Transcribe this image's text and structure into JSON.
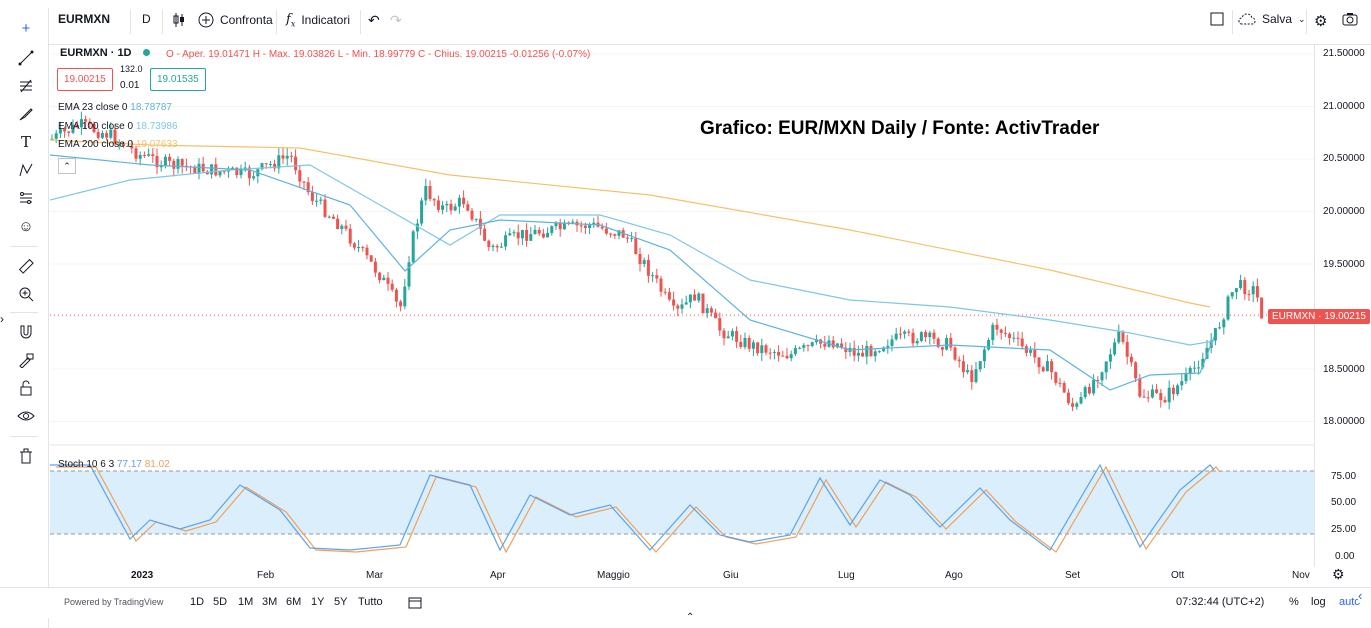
{
  "toolbar": {
    "symbol": "EURMXN",
    "interval": "D",
    "compare_label": "Confronta",
    "indicators_label": "Indicatori",
    "save_label": "Salva"
  },
  "legend": {
    "title": "EURMXN · 1D",
    "ohlc": "O - Aper. 19.01471  H - Max. 19.03826  L - Min. 18.99779  C - Chius. 19.00215  -0.01256 (-0.07%)",
    "bid": "19.00215",
    "spread_top": "132.0",
    "spread_bottom": "0.01",
    "ask": "19.01535",
    "ema1": "EMA 23 close 0",
    "ema1_val": "18.78787",
    "ema2": "EMA 100 close 0",
    "ema2_val": "18.73986",
    "ema3": "EMA 200 close 0",
    "ema3_val": "19.07633",
    "stoch": "Stoch 10 6 3",
    "stoch_k": "77.17",
    "stoch_d": "81.02"
  },
  "overlay_title": "Grafico: EUR/MXN Daily / Fonte: ActivTrader",
  "price_label": "EURMXN",
  "price_value": "19.00215",
  "y_ticks": [
    "21.50000",
    "21.00000",
    "20.50000",
    "20.00000",
    "19.50000",
    "19.00000",
    "18.50000",
    "18.00000"
  ],
  "stoch_ticks": [
    "75.00",
    "50.00",
    "25.00",
    "0.00"
  ],
  "x_ticks": [
    "2023",
    "Feb",
    "Mar",
    "Apr",
    "Maggio",
    "Giu",
    "Lug",
    "Ago",
    "Set",
    "Ott",
    "Nov"
  ],
  "bottom": {
    "powered": "Powered by TradingView",
    "ranges": [
      "1D",
      "5D",
      "1M",
      "3M",
      "6M",
      "1Y",
      "5Y",
      "Tutto"
    ],
    "time": "07:32:44 (UTC+2)",
    "percent": "%",
    "log": "log",
    "auto": "auto"
  },
  "colors": {
    "up": "#26a69a",
    "down": "#ef5350",
    "ema200": "#f5c26b",
    "ema100": "#7ec8e3",
    "ema23": "#5fb3d9",
    "stochK": "#5ea2e8",
    "stochD": "#f0a05a",
    "stochBand": "#dbeefc"
  },
  "icons": [
    "crosshair-icon",
    "trendline-icon",
    "fib-icon",
    "brush-icon",
    "text-icon",
    "pattern-icon",
    "forecast-icon",
    "emoji-icon",
    "ruler-icon",
    "zoom-icon",
    "magnet-icon",
    "lock-drawing-icon",
    "lock-icon",
    "eye-icon",
    "trash-icon"
  ]
}
